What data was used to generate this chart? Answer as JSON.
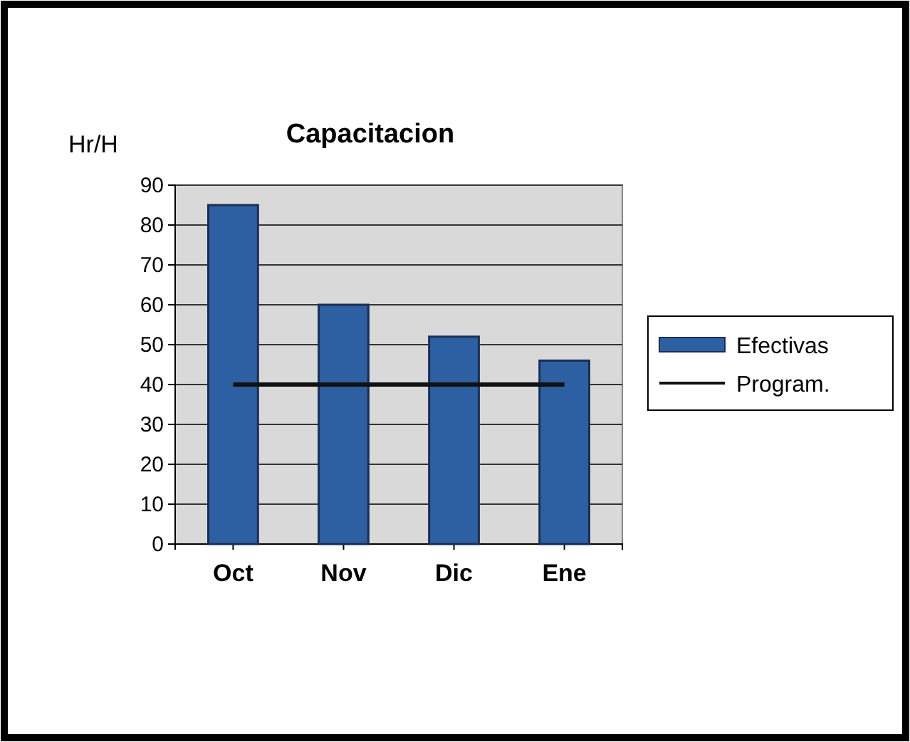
{
  "chart_data": {
    "type": "bar",
    "title": "Capacitacion",
    "ylabel": "Hr/H",
    "categories": [
      "Oct",
      "Nov",
      "Dic",
      "Ene"
    ],
    "series": [
      {
        "name": "Efectivas",
        "color": "#2d5fa3",
        "values": [
          85,
          60,
          52,
          46
        ]
      },
      {
        "name": "Program.",
        "type": "line",
        "color": "#111111",
        "values": [
          40,
          40,
          40,
          40
        ]
      }
    ],
    "ylim": [
      0,
      90
    ],
    "yticks": [
      0,
      10,
      20,
      30,
      40,
      50,
      60,
      70,
      80,
      90
    ],
    "grid": "y",
    "legend": "right"
  }
}
